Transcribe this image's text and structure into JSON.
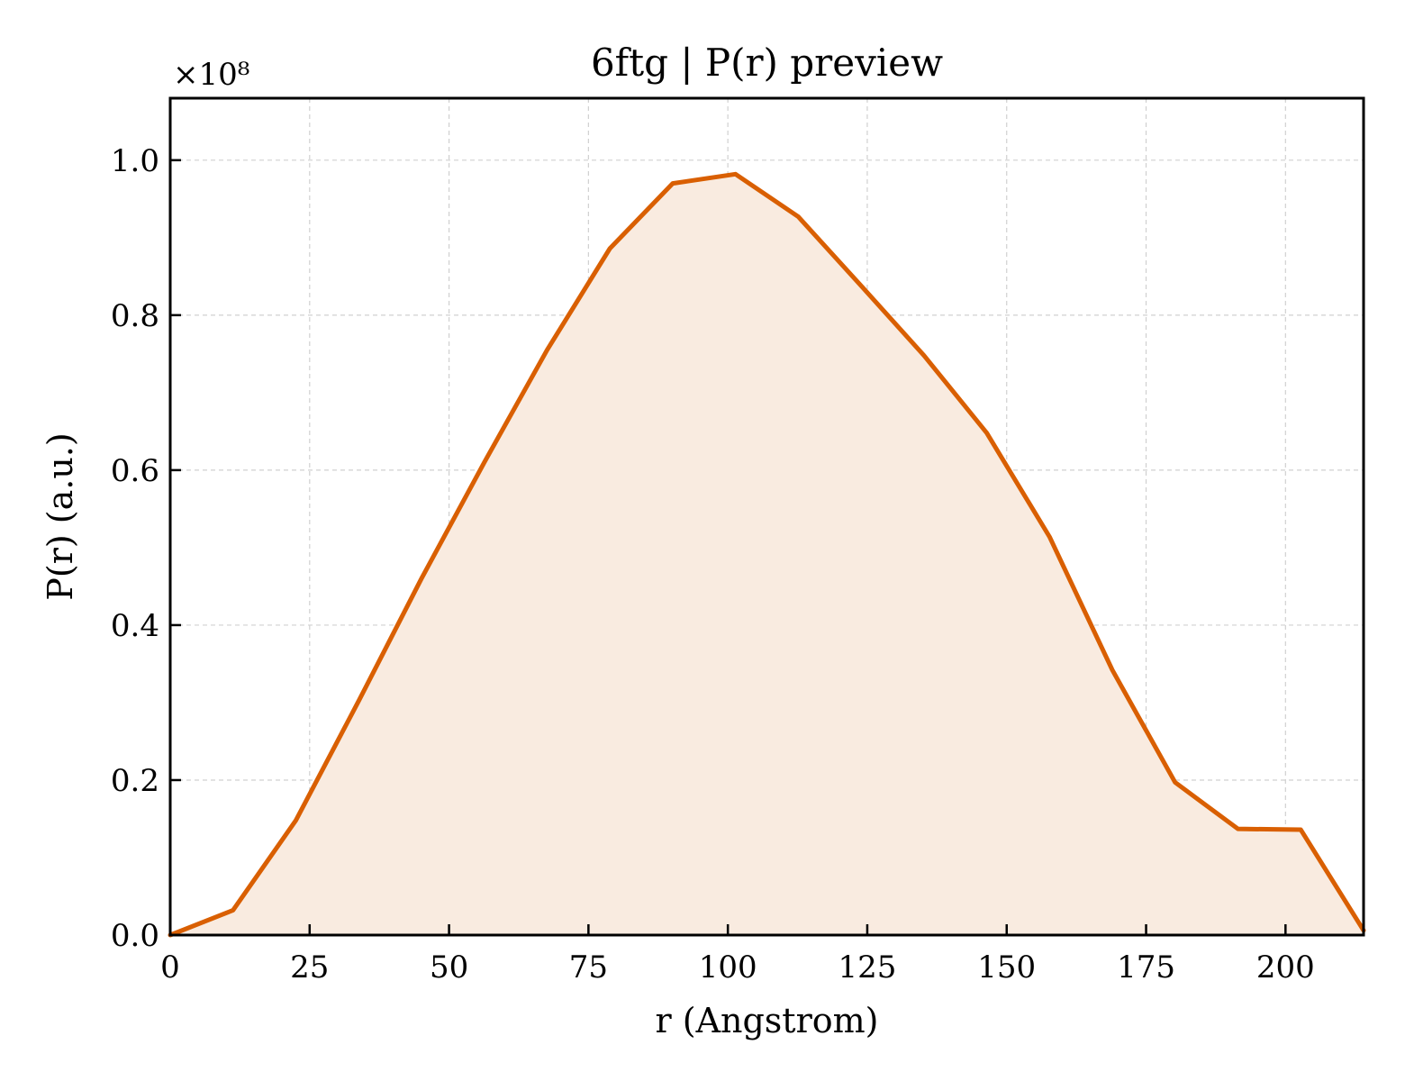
{
  "chart_data": {
    "type": "area",
    "title": "6ftg | P(r) preview",
    "xlabel": "r (Angstrom)",
    "ylabel": "P(r) (a.u.)",
    "y_multiplier_label": "×10⁸",
    "y_scale_factor": 100000000,
    "xlim": [
      0,
      214
    ],
    "ylim": [
      0,
      1.08
    ],
    "x_ticks": [
      0,
      25,
      50,
      75,
      100,
      125,
      150,
      175,
      200
    ],
    "x_tick_labels": [
      "0",
      "25",
      "50",
      "75",
      "100",
      "125",
      "150",
      "175",
      "200"
    ],
    "y_ticks": [
      0.0,
      0.2,
      0.4,
      0.6,
      0.8,
      1.0
    ],
    "y_tick_labels": [
      "0.0",
      "0.2",
      "0.4",
      "0.6",
      "0.8",
      "1.0"
    ],
    "grid": true,
    "legend": "none",
    "line_color": "#d95f02",
    "fill_color": "#f9ebe0",
    "series": [
      {
        "x": [
          0,
          11.26,
          22.53,
          33.79,
          45.05,
          56.32,
          67.58,
          78.84,
          90.11,
          101.37,
          112.63,
          123.89,
          135.16,
          146.42,
          157.68,
          168.95,
          180.21,
          191.47,
          202.74,
          214
        ],
        "y": [
          0.0,
          0.032,
          0.148,
          0.302,
          0.46,
          0.61,
          0.755,
          0.886,
          0.97,
          0.982,
          0.927,
          0.838,
          0.748,
          0.648,
          0.514,
          0.342,
          0.197,
          0.137,
          0.136,
          0.006
        ]
      }
    ]
  }
}
